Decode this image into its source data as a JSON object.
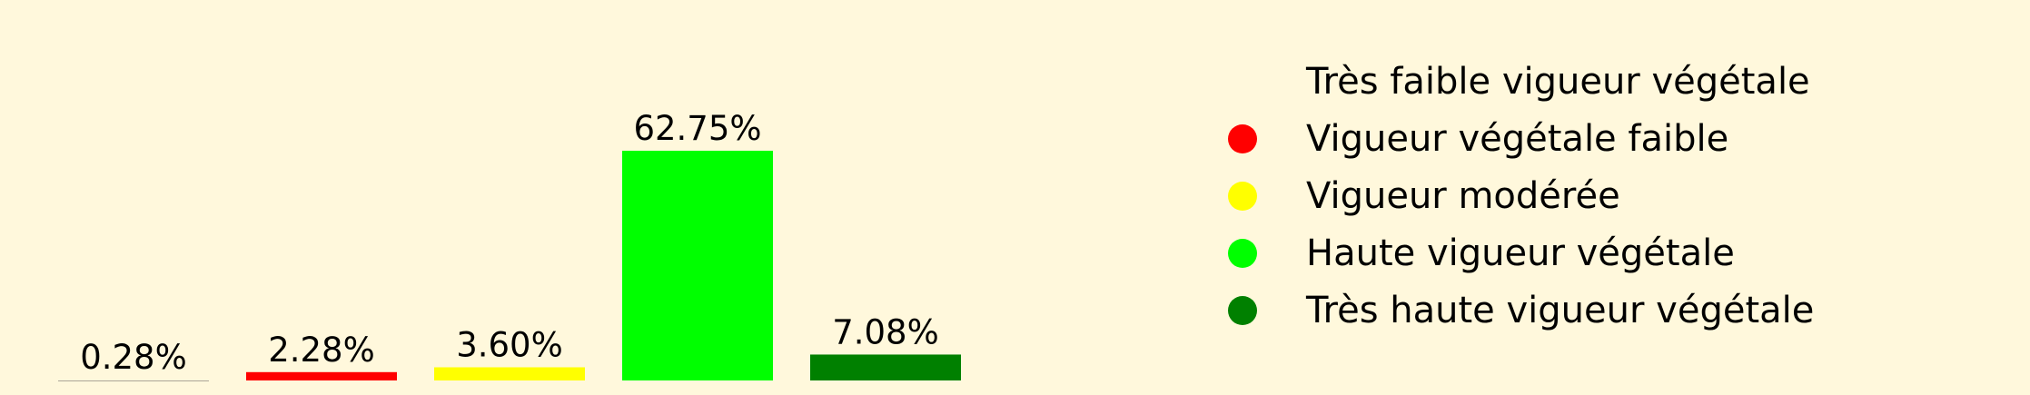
{
  "chart_data": {
    "type": "bar",
    "categories": [
      "Très faible vigueur végétale",
      "Vigueur végétale faible",
      "Vigueur modérée",
      "Haute vigueur végétale",
      "Très haute vigueur végétale"
    ],
    "values": [
      0.28,
      2.28,
      3.6,
      62.75,
      7.08
    ],
    "data_labels": [
      "0.28%",
      "2.28%",
      "3.60%",
      "62.75%",
      "7.08%"
    ],
    "colors": [
      "#fff8dc",
      "#ff0000",
      "#ffff00",
      "#00ff00",
      "#008000"
    ],
    "ylim": [
      0,
      62.75
    ],
    "grid": false,
    "legend_position": "right",
    "title": "",
    "xlabel": "",
    "ylabel": ""
  }
}
